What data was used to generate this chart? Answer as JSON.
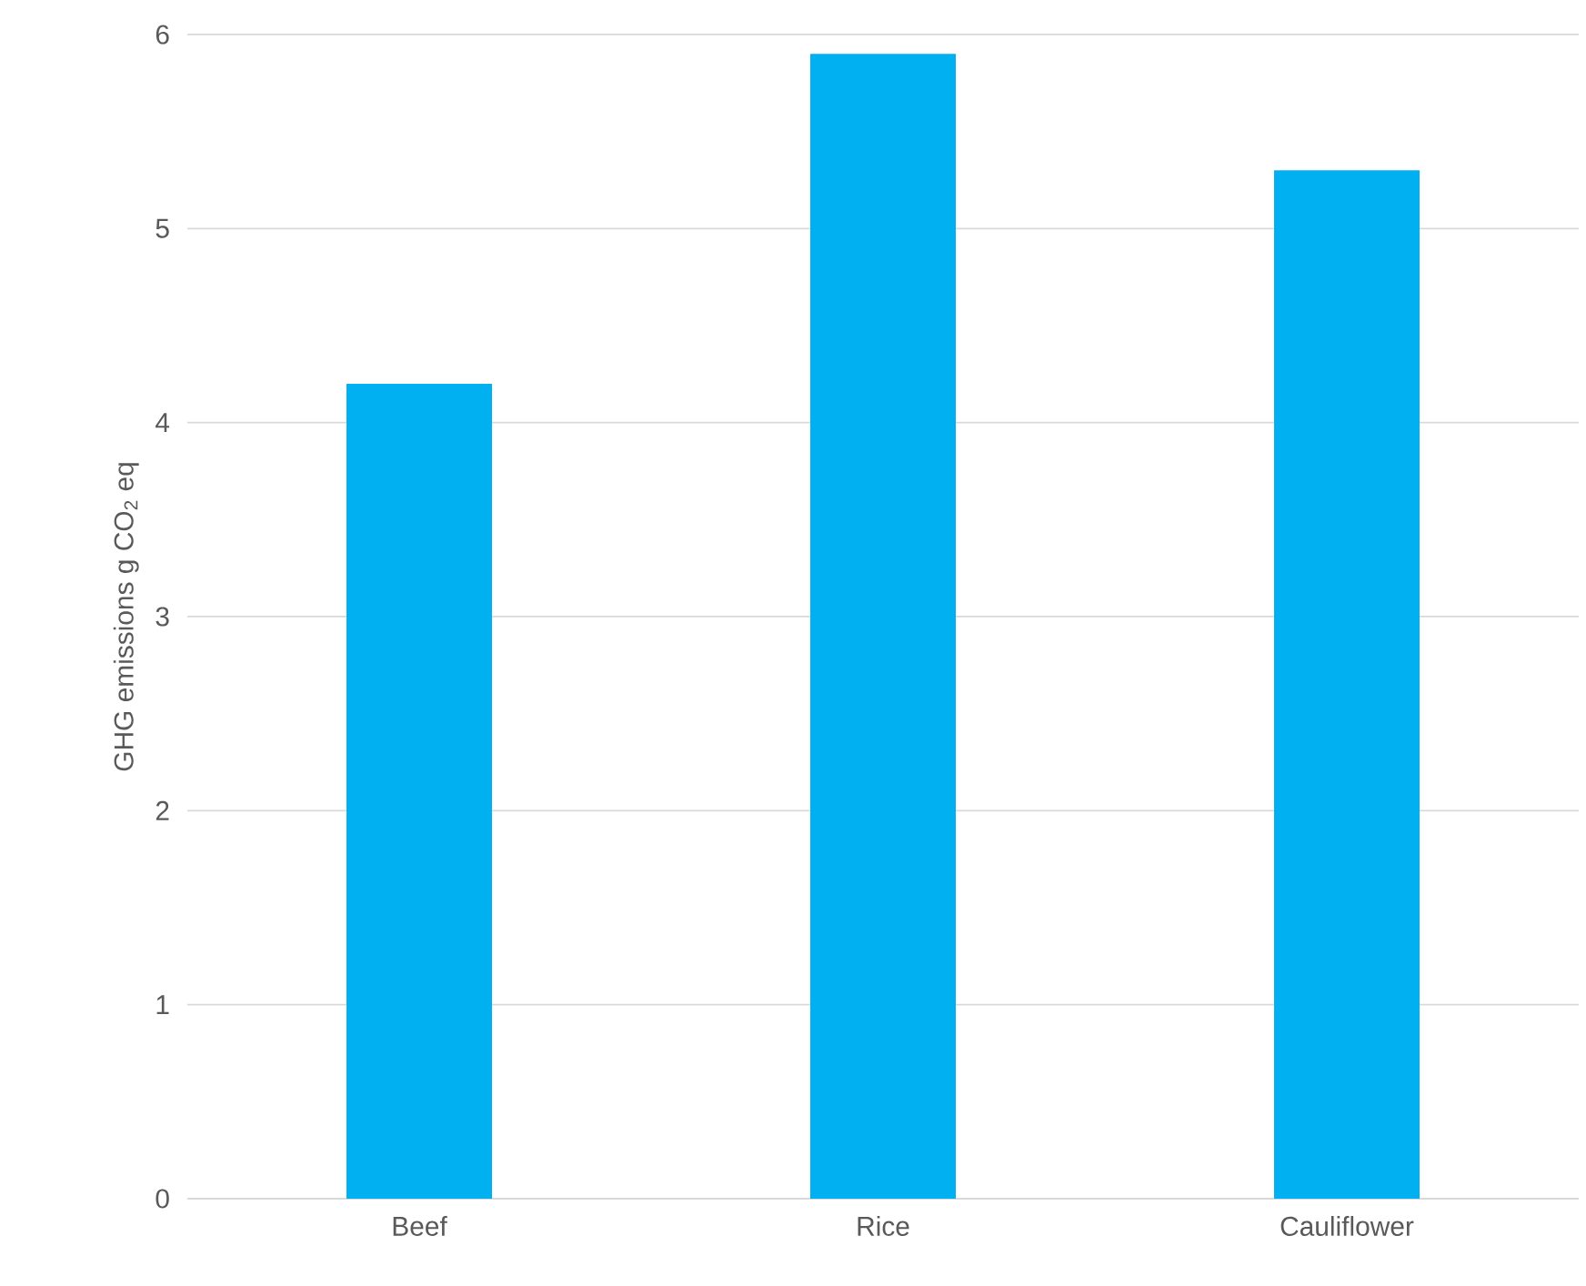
{
  "chart_data": {
    "type": "bar",
    "ylabel": "GHG emissions g CO$_{2}$ eq",
    "categories": [
      "Beef",
      "Rice",
      "Cauliflower"
    ],
    "values": [
      4.2,
      5.9,
      5.3
    ],
    "color": "#00b0f0",
    "ylim": [
      0,
      6
    ],
    "yticks": [
      0,
      1,
      2,
      3,
      4,
      5,
      6
    ],
    "grid": "y"
  }
}
